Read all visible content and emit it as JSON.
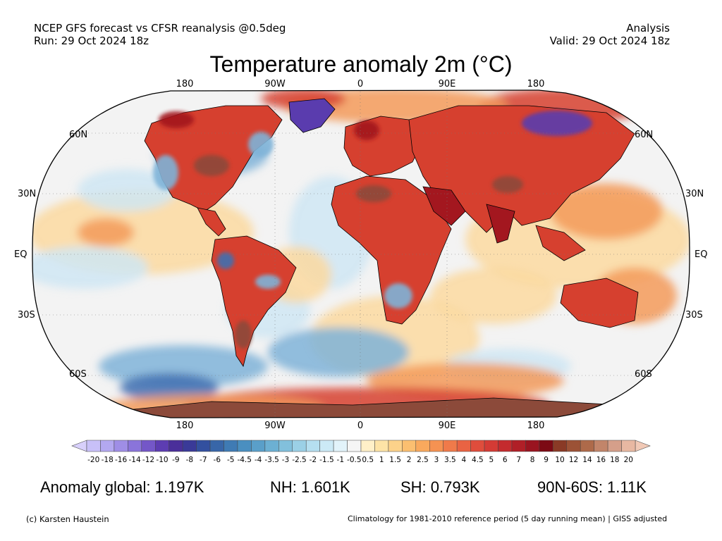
{
  "header": {
    "line1_left": "NCEP GFS forecast vs CFSR reanalysis @0.5deg",
    "line2_left": "Run: 29 Oct 2024 18z",
    "line1_right": "Analysis",
    "line2_right": "Valid: 29 Oct 2024 18z"
  },
  "title": "Temperature anomaly 2m (°C)",
  "axes": {
    "longitude_labels": [
      "180",
      "90W",
      "0",
      "90E",
      "180"
    ],
    "latitude_labels_left": [
      "60N",
      "30N",
      "EQ",
      "30S",
      "60S"
    ],
    "latitude_labels_right": [
      "60N",
      "30N",
      "EQ",
      "30S",
      "60S"
    ]
  },
  "colorbar": {
    "ticks": [
      "-20",
      "-18",
      "-16",
      "-14",
      "-12",
      "-10",
      "-9",
      "-8",
      "-7",
      "-6",
      "-5",
      "-4.5",
      "-4",
      "-3.5",
      "-3",
      "-2.5",
      "-2",
      "-1.5",
      "-1",
      "-0.5",
      "0.5",
      "1",
      "1.5",
      "2",
      "2.5",
      "3",
      "3.5",
      "4",
      "4.5",
      "5",
      "6",
      "7",
      "8",
      "9",
      "10",
      "12",
      "14",
      "16",
      "18",
      "20"
    ],
    "colors": [
      "#c8c0f8",
      "#b3a8f0",
      "#9f8ee6",
      "#8a74da",
      "#7457c8",
      "#5d3db2",
      "#4a2f9a",
      "#3a3a98",
      "#33509f",
      "#3866a8",
      "#3f7bb4",
      "#4a8fc0",
      "#5a9fc9",
      "#6cb0d3",
      "#82c0dc",
      "#9bd0e6",
      "#b5dff0",
      "#cceaf6",
      "#e2f3fa",
      "#f5f5f5",
      "#fff0c8",
      "#fde3a6",
      "#fcd28a",
      "#fbbf70",
      "#f9a95d",
      "#f59252",
      "#f07a4a",
      "#e96343",
      "#df4d3c",
      "#d43b35",
      "#c42b2e",
      "#b01f27",
      "#9a1420",
      "#7c0a14",
      "#8a3a26",
      "#9c5236",
      "#ae6a4a",
      "#c2856a",
      "#d59f8a",
      "#e8b8a2"
    ],
    "under_color": "#d8d0fb",
    "over_color": "#f1c9b6"
  },
  "stats": {
    "global": "Anomaly global: 1.197K",
    "nh": "NH: 1.601K",
    "sh": "SH: 0.793K",
    "arctic": "90N-60S: 1.11K"
  },
  "footer": {
    "left": "(c) Karsten Haustein",
    "right": "Climatology for 1981-2010 reference period (5 day running mean) | GISS adjusted"
  },
  "map_colors": {
    "ocean_base": "#f3f3f3",
    "warm_light": "#fcd9a0",
    "warm": "#f39a5a",
    "hot": "#d6402f",
    "very_hot": "#a3171f",
    "extreme": "#8c4a3a",
    "cool_light": "#cfe6f3",
    "cool": "#7fb3d8",
    "cold": "#3f6fb0",
    "very_cold": "#5a3cae",
    "coast": "#000000"
  }
}
